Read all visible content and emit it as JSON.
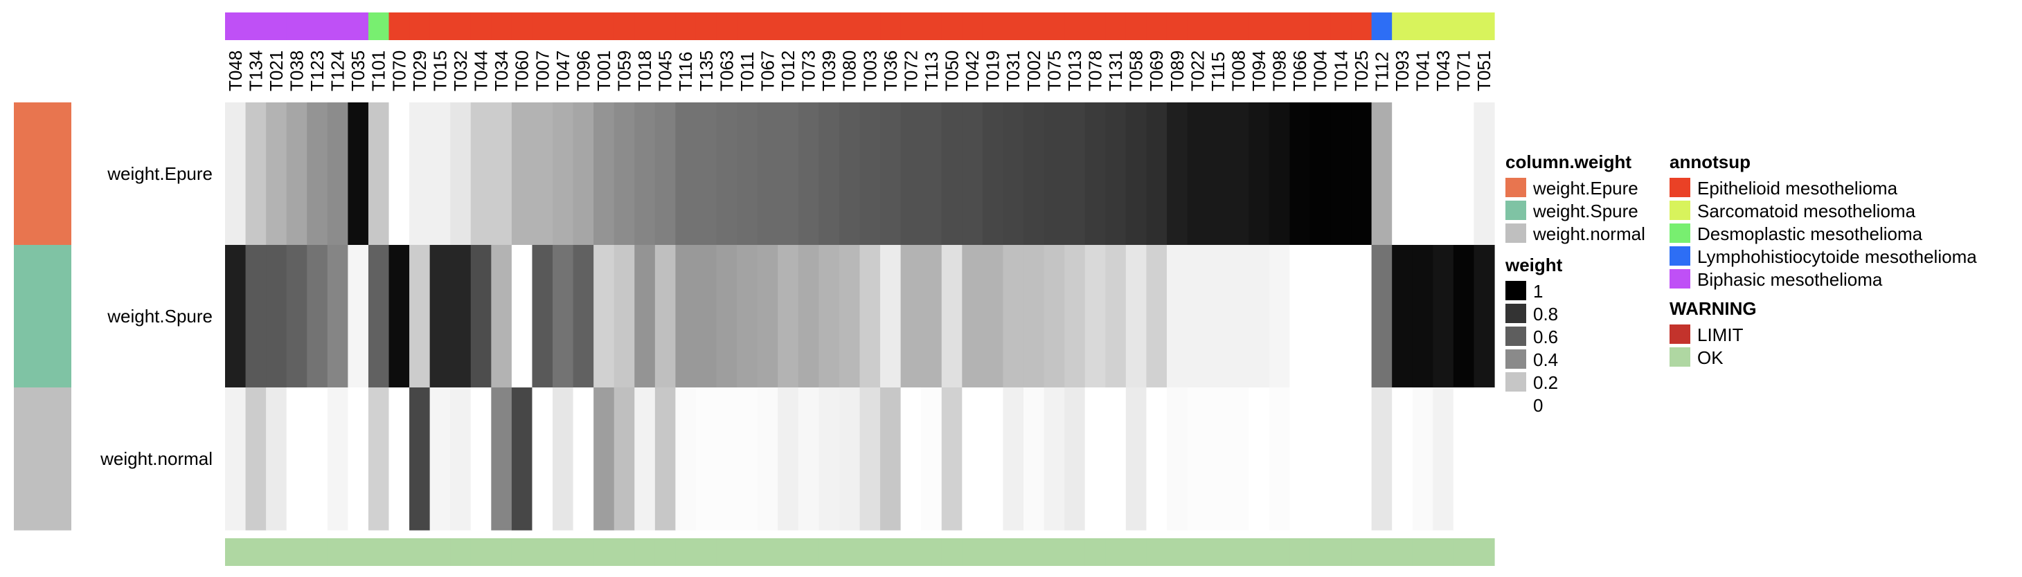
{
  "chart_data": {
    "type": "heatmap",
    "columns": [
      "T048",
      "T134",
      "T021",
      "T038",
      "T123",
      "T124",
      "T035",
      "T101",
      "T070",
      "T029",
      "T015",
      "T032",
      "T044",
      "T034",
      "T060",
      "T007",
      "T047",
      "T096",
      "T001",
      "T059",
      "T018",
      "T045",
      "T116",
      "T135",
      "T063",
      "T011",
      "T067",
      "T012",
      "T073",
      "T039",
      "T080",
      "T003",
      "T036",
      "T072",
      "T113",
      "T050",
      "T042",
      "T019",
      "T031",
      "T002",
      "T075",
      "T013",
      "T078",
      "T131",
      "T058",
      "T069",
      "T089",
      "T022",
      "T115",
      "T008",
      "T094",
      "T098",
      "T066",
      "T004",
      "T014",
      "T025",
      "T112",
      "T093",
      "T041",
      "T043",
      "T071",
      "T051"
    ],
    "column_annotation": [
      "Biphasic mesothelioma",
      "Biphasic mesothelioma",
      "Biphasic mesothelioma",
      "Biphasic mesothelioma",
      "Biphasic mesothelioma",
      "Biphasic mesothelioma",
      "Biphasic mesothelioma",
      "Desmoplastic mesothelioma",
      "Epithelioid mesothelioma",
      "Epithelioid mesothelioma",
      "Epithelioid mesothelioma",
      "Epithelioid mesothelioma",
      "Epithelioid mesothelioma",
      "Epithelioid mesothelioma",
      "Epithelioid mesothelioma",
      "Epithelioid mesothelioma",
      "Epithelioid mesothelioma",
      "Epithelioid mesothelioma",
      "Epithelioid mesothelioma",
      "Epithelioid mesothelioma",
      "Epithelioid mesothelioma",
      "Epithelioid mesothelioma",
      "Epithelioid mesothelioma",
      "Epithelioid mesothelioma",
      "Epithelioid mesothelioma",
      "Epithelioid mesothelioma",
      "Epithelioid mesothelioma",
      "Epithelioid mesothelioma",
      "Epithelioid mesothelioma",
      "Epithelioid mesothelioma",
      "Epithelioid mesothelioma",
      "Epithelioid mesothelioma",
      "Epithelioid mesothelioma",
      "Epithelioid mesothelioma",
      "Epithelioid mesothelioma",
      "Epithelioid mesothelioma",
      "Epithelioid mesothelioma",
      "Epithelioid mesothelioma",
      "Epithelioid mesothelioma",
      "Epithelioid mesothelioma",
      "Epithelioid mesothelioma",
      "Epithelioid mesothelioma",
      "Epithelioid mesothelioma",
      "Epithelioid mesothelioma",
      "Epithelioid mesothelioma",
      "Epithelioid mesothelioma",
      "Epithelioid mesothelioma",
      "Epithelioid mesothelioma",
      "Epithelioid mesothelioma",
      "Epithelioid mesothelioma",
      "Epithelioid mesothelioma",
      "Epithelioid mesothelioma",
      "Epithelioid mesothelioma",
      "Epithelioid mesothelioma",
      "Epithelioid mesothelioma",
      "Epithelioid mesothelioma",
      "Lymphohistiocytoide mesothelioma",
      "Sarcomatoid mesothelioma",
      "Sarcomatoid mesothelioma",
      "Sarcomatoid mesothelioma",
      "Sarcomatoid mesothelioma",
      "Sarcomatoid mesothelioma"
    ],
    "rows": [
      {
        "name": "weight.Epure",
        "values": [
          0.07,
          0.22,
          0.3,
          0.35,
          0.42,
          0.45,
          0.95,
          0.22,
          0.0,
          0.06,
          0.06,
          0.1,
          0.2,
          0.2,
          0.3,
          0.3,
          0.32,
          0.35,
          0.42,
          0.45,
          0.48,
          0.5,
          0.55,
          0.55,
          0.56,
          0.57,
          0.58,
          0.58,
          0.6,
          0.62,
          0.64,
          0.65,
          0.66,
          0.68,
          0.68,
          0.7,
          0.7,
          0.72,
          0.73,
          0.74,
          0.75,
          0.75,
          0.77,
          0.78,
          0.8,
          0.82,
          0.88,
          0.9,
          0.9,
          0.9,
          0.92,
          0.94,
          0.98,
          0.99,
          0.99,
          0.99,
          0.32,
          0.0,
          0.0,
          0.0,
          0.0,
          0.06
        ]
      },
      {
        "name": "weight.Spure",
        "values": [
          0.88,
          0.65,
          0.65,
          0.62,
          0.55,
          0.48,
          0.04,
          0.62,
          0.95,
          0.2,
          0.85,
          0.85,
          0.7,
          0.3,
          0.0,
          0.65,
          0.55,
          0.62,
          0.18,
          0.22,
          0.42,
          0.25,
          0.4,
          0.4,
          0.38,
          0.36,
          0.35,
          0.3,
          0.33,
          0.3,
          0.28,
          0.2,
          0.08,
          0.3,
          0.3,
          0.12,
          0.3,
          0.3,
          0.25,
          0.25,
          0.23,
          0.2,
          0.15,
          0.18,
          0.1,
          0.18,
          0.05,
          0.05,
          0.05,
          0.05,
          0.05,
          0.04,
          0.0,
          0.0,
          0.0,
          0.0,
          0.55,
          0.95,
          0.95,
          0.92,
          0.98,
          0.92
        ]
      },
      {
        "name": "weight.normal",
        "values": [
          0.05,
          0.2,
          0.08,
          0.0,
          0.0,
          0.04,
          0.0,
          0.18,
          0.0,
          0.72,
          0.04,
          0.05,
          0.0,
          0.48,
          0.72,
          0.0,
          0.1,
          0.0,
          0.38,
          0.25,
          0.05,
          0.22,
          0.02,
          0.01,
          0.01,
          0.01,
          0.02,
          0.06,
          0.03,
          0.05,
          0.06,
          0.12,
          0.22,
          0.0,
          0.01,
          0.18,
          0.0,
          0.0,
          0.06,
          0.02,
          0.05,
          0.08,
          0.0,
          0.0,
          0.08,
          0.0,
          0.02,
          0.01,
          0.01,
          0.01,
          0.0,
          0.01,
          0.0,
          0.0,
          0.0,
          0.0,
          0.1,
          0.0,
          0.02,
          0.05,
          0.0,
          0.0
        ]
      }
    ],
    "column_weight_colors": {
      "weight.Epure": "#e8754f",
      "weight.Spure": "#7fc3a4",
      "weight.normal": "#bfbfbf"
    },
    "warning": [
      "OK",
      "OK",
      "OK",
      "OK",
      "OK",
      "OK",
      "OK",
      "OK",
      "OK",
      "OK",
      "OK",
      "OK",
      "OK",
      "OK",
      "OK",
      "OK",
      "OK",
      "OK",
      "OK",
      "OK",
      "OK",
      "OK",
      "OK",
      "OK",
      "OK",
      "OK",
      "OK",
      "OK",
      "OK",
      "OK",
      "OK",
      "OK",
      "OK",
      "OK",
      "OK",
      "OK",
      "OK",
      "OK",
      "OK",
      "OK",
      "OK",
      "OK",
      "OK",
      "OK",
      "OK",
      "OK",
      "OK",
      "OK",
      "OK",
      "OK",
      "OK",
      "OK",
      "OK",
      "OK",
      "OK",
      "OK",
      "OK",
      "OK",
      "OK",
      "OK",
      "OK",
      "OK"
    ],
    "color_scale": {
      "low": "#ffffff",
      "high": "#000000",
      "range": [
        0,
        1
      ]
    },
    "legends": [
      {
        "title": "column.weight",
        "entries": [
          {
            "label": "weight.Epure",
            "color": "#e8754f"
          },
          {
            "label": "weight.Spure",
            "color": "#7fc3a4"
          },
          {
            "label": "weight.normal",
            "color": "#bfbfbf"
          }
        ]
      },
      {
        "title": "weight",
        "entries": [
          {
            "label": "1",
            "color": "#000000"
          },
          {
            "label": "0.8",
            "color": "#333333"
          },
          {
            "label": "0.6",
            "color": "#5e5e5e"
          },
          {
            "label": "0.4",
            "color": "#8a8a8a"
          },
          {
            "label": "0.2",
            "color": "#c6c6c6"
          },
          {
            "label": "0",
            "color": "#ffffff"
          }
        ]
      },
      {
        "title": "annotsup",
        "entries": [
          {
            "label": "Epithelioid mesothelioma",
            "color": "#ea4126"
          },
          {
            "label": "Sarcomatoid mesothelioma",
            "color": "#d8f35c"
          },
          {
            "label": "Desmoplastic mesothelioma",
            "color": "#78ef70"
          },
          {
            "label": "Lymphohistiocytoide mesothelioma",
            "color": "#2d6ef5"
          },
          {
            "label": "Biphasic mesothelioma",
            "color": "#bf50f6"
          }
        ]
      },
      {
        "title": "WARNING",
        "entries": [
          {
            "label": "LIMIT",
            "color": "#c3332c"
          },
          {
            "label": "OK",
            "color": "#afd7a2"
          }
        ]
      }
    ]
  }
}
